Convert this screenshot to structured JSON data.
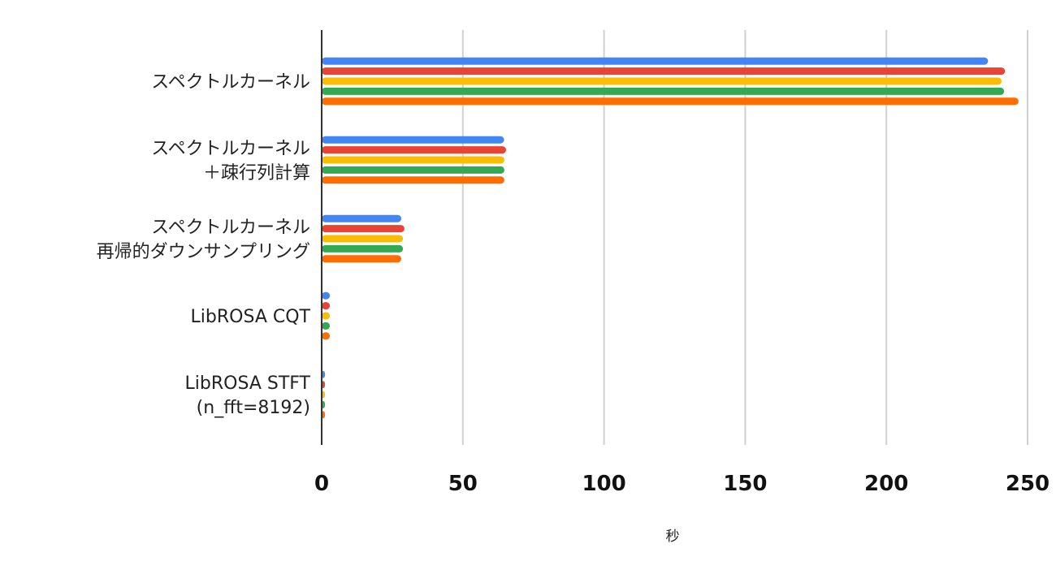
{
  "chart_data": {
    "type": "bar",
    "orientation": "horizontal",
    "title": "",
    "xlabel": "秒",
    "ylabel": "",
    "xlim": [
      0,
      250
    ],
    "xticks": [
      "0",
      "50",
      "100",
      "150",
      "200",
      "250"
    ],
    "grid": true,
    "legend": "none",
    "categories": [
      [
        "スペクトルカーネル"
      ],
      [
        "スペクトルカーネル",
        "＋疎行列計算"
      ],
      [
        "スペクトルカーネル",
        "再帰的ダウンサンプリング"
      ],
      [
        "LibROSA CQT"
      ],
      [
        "LibROSA STFT",
        "(n_fft=8192)"
      ]
    ],
    "series": [
      {
        "name": "series-1",
        "color": "#4285f4",
        "values": [
          236,
          64.6,
          28.2,
          2.9,
          1.2
        ]
      },
      {
        "name": "series-2",
        "color": "#ea4335",
        "values": [
          242,
          65.3,
          29.3,
          2.9,
          1.2
        ]
      },
      {
        "name": "series-3",
        "color": "#fbbc04",
        "values": [
          240.8,
          64.7,
          28.8,
          2.9,
          1.2
        ]
      },
      {
        "name": "series-4",
        "color": "#34a853",
        "values": [
          241.7,
          64.7,
          28.8,
          2.9,
          1.2
        ]
      },
      {
        "name": "series-5",
        "color": "#ff6d01",
        "values": [
          246.8,
          64.7,
          28.2,
          2.9,
          1.2
        ]
      }
    ]
  }
}
